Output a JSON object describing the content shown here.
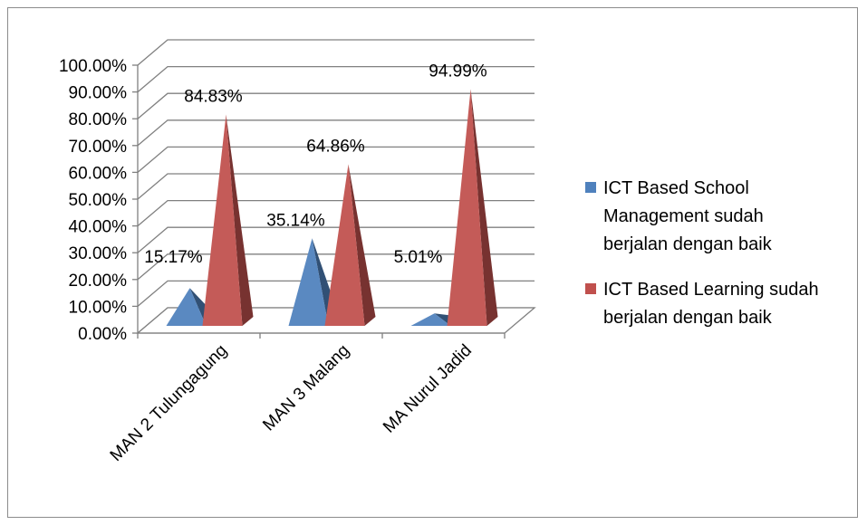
{
  "chart_data": {
    "type": "bar",
    "style": "3d-pyramid",
    "categories": [
      "MAN 2 Tulungagung",
      "MAN 3 Malang",
      "MA Nurul Jadid"
    ],
    "series": [
      {
        "name": "ICT Based School Management sudah berjalan dengan baik",
        "legend_lines": [
          "ICT Based School",
          "Management sudah",
          "berjalan dengan baik"
        ],
        "values": [
          15.17,
          35.14,
          5.01
        ],
        "labels": [
          "15.17%",
          "35.14%",
          "5.01%"
        ],
        "color": "#4f81bd"
      },
      {
        "name": "ICT Based Learning sudah berjalan dengan baik",
        "legend_lines": [
          "ICT Based Learning sudah",
          "berjalan dengan baik"
        ],
        "values": [
          84.83,
          64.86,
          94.99
        ],
        "labels": [
          "84.83%",
          "64.86%",
          "94.99%"
        ],
        "color": "#c0504d"
      }
    ],
    "yticks": [
      "0.00%",
      "10.00%",
      "20.00%",
      "30.00%",
      "40.00%",
      "50.00%",
      "60.00%",
      "70.00%",
      "80.00%",
      "90.00%",
      "100.00%"
    ],
    "ylim": [
      0,
      100
    ],
    "grid": true,
    "legend": "right"
  }
}
